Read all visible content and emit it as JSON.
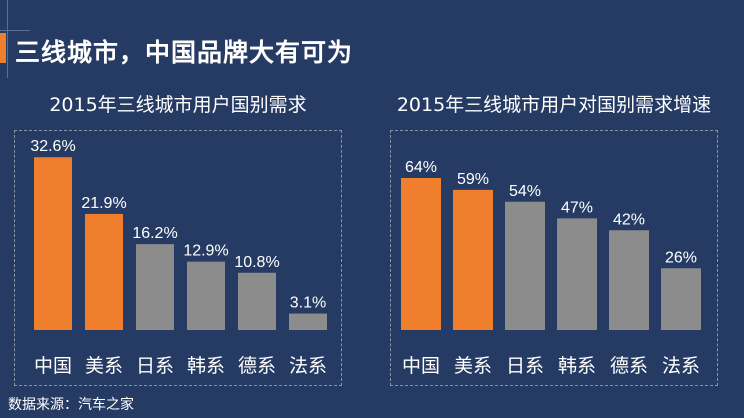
{
  "slide": {
    "title": "三线城市，中国品牌大有可为",
    "source": "数据来源：汽车之家"
  },
  "colors": {
    "highlight": "#ef7f2d",
    "normal": "#8c8c8c",
    "background": "#263b64"
  },
  "chart_data": [
    {
      "type": "bar",
      "title": "2015年三线城市用户国别需求",
      "categories": [
        "中国",
        "美系",
        "日系",
        "韩系",
        "德系",
        "法系"
      ],
      "values": [
        32.6,
        21.9,
        16.2,
        12.9,
        10.8,
        3.1
      ],
      "labels": [
        "32.6%",
        "21.9%",
        "16.2%",
        "12.9%",
        "10.8%",
        "3.1%"
      ],
      "highlighted": [
        0,
        1
      ]
    },
    {
      "type": "bar",
      "title": "2015年三线城市用户对国别需求增速",
      "categories": [
        "中国",
        "美系",
        "日系",
        "韩系",
        "德系",
        "法系"
      ],
      "values": [
        64,
        59,
        54,
        47,
        42,
        26
      ],
      "labels": [
        "64%",
        "59%",
        "54%",
        "47%",
        "42%",
        "26%"
      ],
      "highlighted": [
        0,
        1
      ]
    }
  ]
}
